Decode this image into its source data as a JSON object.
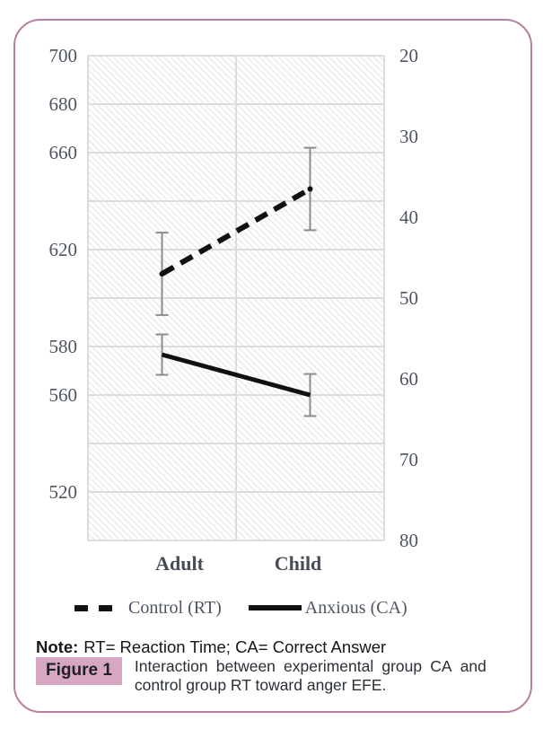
{
  "chart_data": {
    "type": "line",
    "categories": [
      "Adult",
      "Child"
    ],
    "series": [
      {
        "name": "Control (RT)",
        "axis": "left",
        "style": "dashed",
        "marker": "dot",
        "values": [
          610,
          645
        ],
        "errors": [
          17,
          17
        ]
      },
      {
        "name": "Anxious (CA)",
        "axis": "right",
        "style": "solid",
        "marker": "none",
        "values": [
          57,
          62
        ],
        "errors": [
          2.5,
          2.6
        ]
      }
    ],
    "left_axis": {
      "min": 500,
      "max": 700,
      "grid_step": 20,
      "labeled_ticks": [
        700,
        680,
        660,
        620,
        580,
        560,
        520
      ]
    },
    "right_axis": {
      "min": 20,
      "max": 80,
      "inverted": true,
      "labeled_ticks": [
        20,
        30,
        40,
        50,
        60,
        70,
        80
      ]
    },
    "grid": true,
    "legend_position": "bottom",
    "title": "",
    "xlabel": "",
    "ylabel_left": "",
    "ylabel_right": ""
  },
  "note": {
    "label": "Note:",
    "text": "RT= Reaction Time; CA= Correct Answer"
  },
  "figure": {
    "badge": "Figure 1",
    "caption_line1": "Interaction between experimental group CA and",
    "caption_line2": "control group RT toward anger EFE."
  },
  "colors": {
    "frame_border": "#b87f9f",
    "badge_bg": "#d6a6c2",
    "gridline": "#dcdcdc",
    "error_bar": "#8c8c8c",
    "line": "#111111",
    "tick_text": "#4d5560"
  }
}
